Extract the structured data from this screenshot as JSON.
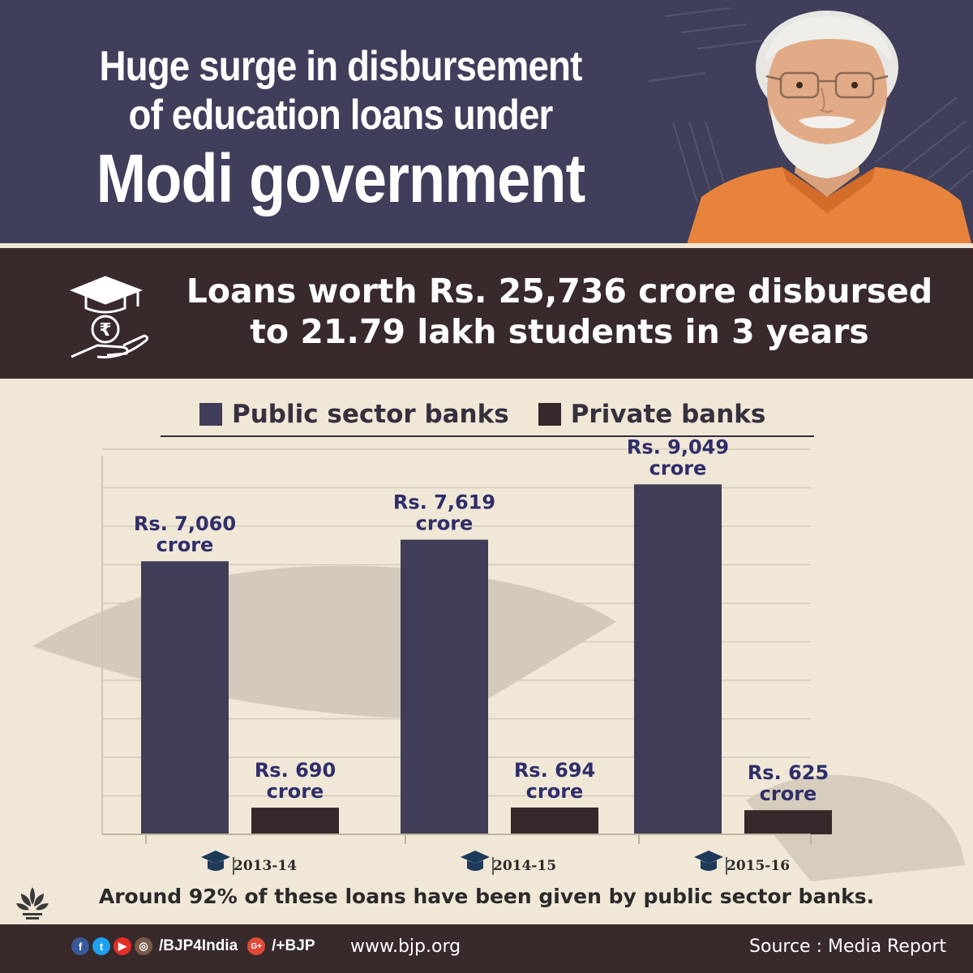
{
  "header": {
    "title_line1": "Huge surge in disbursement",
    "title_line2": "of education loans under",
    "title_line3": "Modi government"
  },
  "banner": {
    "line1": "Loans worth Rs. 25,736 crore disbursed",
    "line2": "to 21.79 lakh students in 3 years",
    "icon": "graduation-cap-rupee-hand-icon"
  },
  "chart_data": {
    "type": "bar",
    "categories": [
      "2013-14",
      "2014-15",
      "2015-16"
    ],
    "series": [
      {
        "name": "Public sector banks",
        "values": [
          7060,
          7619,
          9049
        ],
        "labels": [
          "Rs. 7,060",
          "Rs. 7,619",
          "Rs. 9,049"
        ],
        "color": "#3f3d57"
      },
      {
        "name": "Private banks",
        "values": [
          690,
          694,
          625
        ],
        "labels": [
          "Rs. 690",
          "Rs. 694",
          "Rs. 625"
        ],
        "color": "#35282a"
      }
    ],
    "unit_label": "crore",
    "ylim": [
      0,
      10000
    ],
    "grid": true,
    "legend_position": "top"
  },
  "footnote": "Around 92% of these loans have been given by public sector banks.",
  "footer": {
    "handle1": "/BJP4India",
    "handle2": "/+BJP",
    "gplus": "G+",
    "website": "www.bjp.org",
    "source": "Source : Media Report"
  },
  "colors": {
    "header_bg": "#3f3e5b",
    "banner_bg": "#38292a",
    "chart_bg": "#f0e7d7",
    "label_blue": "#2f2e6a"
  }
}
